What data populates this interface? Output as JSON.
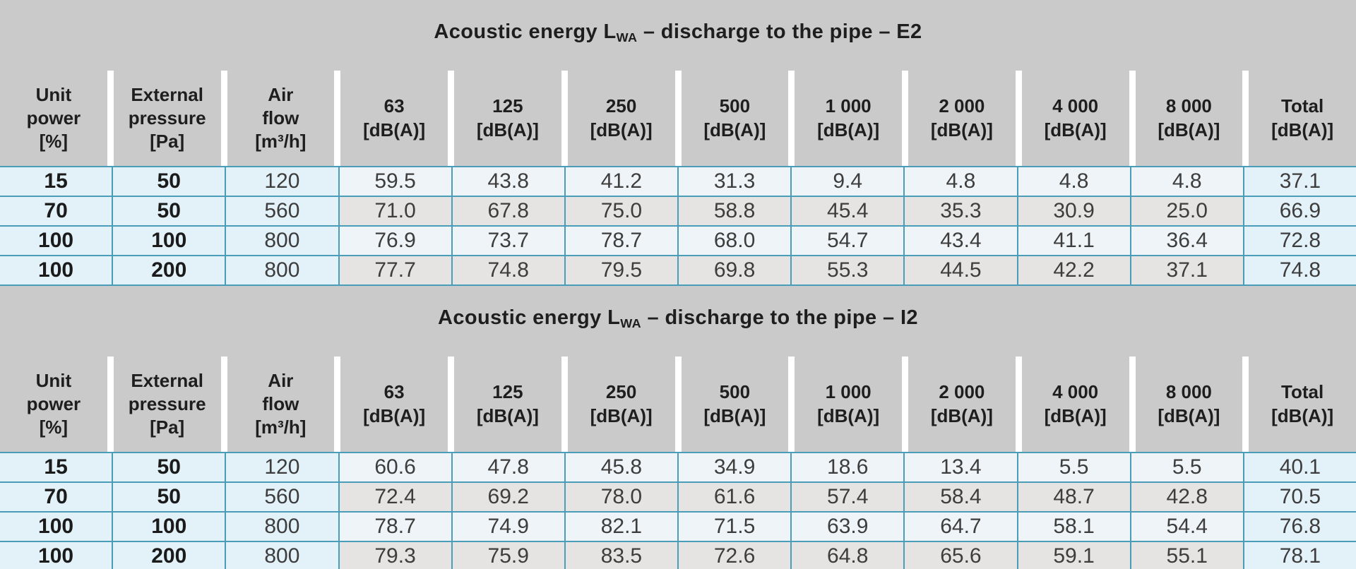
{
  "document": {
    "type": "acoustic-data-sheet",
    "colors": {
      "canvas_gray": "#cacaca",
      "header_gap_white": "#ffffff",
      "cell_blue": "#e3f1f9",
      "cell_light": "#eef4f7",
      "cell_gray": "#e5e4e2",
      "border_teal": "#4a9db9",
      "text_black": "#1e1e1e",
      "text_gray": "#3d3d3d"
    }
  },
  "columns": [
    "Unit\npower\n[%]",
    "External\npressure\n[Pa]",
    "Air\nflow\n[m³/h]",
    "63\n[dB(A)]",
    "125\n[dB(A)]",
    "250\n[dB(A)]",
    "500\n[dB(A)]",
    "1 000\n[dB(A)]",
    "2 000\n[dB(A)]",
    "4 000\n[dB(A)]",
    "8 000\n[dB(A)]",
    "Total\n[dB(A)]"
  ],
  "tables": [
    {
      "id": "E2",
      "title": {
        "prefix": "Acoustic energy L",
        "subscript": "WA",
        "suffix": " – discharge to the pipe – E2"
      },
      "rows": [
        [
          "15",
          "50",
          "120",
          "59.5",
          "43.8",
          "41.2",
          "31.3",
          "9.4",
          "4.8",
          "4.8",
          "4.8",
          "37.1"
        ],
        [
          "70",
          "50",
          "560",
          "71.0",
          "67.8",
          "75.0",
          "58.8",
          "45.4",
          "35.3",
          "30.9",
          "25.0",
          "66.9"
        ],
        [
          "100",
          "100",
          "800",
          "76.9",
          "73.7",
          "78.7",
          "68.0",
          "54.7",
          "43.4",
          "41.1",
          "36.4",
          "72.8"
        ],
        [
          "100",
          "200",
          "800",
          "77.7",
          "74.8",
          "79.5",
          "69.8",
          "55.3",
          "44.5",
          "42.2",
          "37.1",
          "74.8"
        ]
      ]
    },
    {
      "id": "I2",
      "title": {
        "prefix": "Acoustic energy L",
        "subscript": "WA",
        "suffix": " – discharge to the pipe – I2"
      },
      "rows": [
        [
          "15",
          "50",
          "120",
          "60.6",
          "47.8",
          "45.8",
          "34.9",
          "18.6",
          "13.4",
          "5.5",
          "5.5",
          "40.1"
        ],
        [
          "70",
          "50",
          "560",
          "72.4",
          "69.2",
          "78.0",
          "61.6",
          "57.4",
          "58.4",
          "48.7",
          "42.8",
          "70.5"
        ],
        [
          "100",
          "100",
          "800",
          "78.7",
          "74.9",
          "82.1",
          "71.5",
          "63.9",
          "64.7",
          "58.1",
          "54.4",
          "76.8"
        ],
        [
          "100",
          "200",
          "800",
          "79.3",
          "75.9",
          "83.5",
          "72.6",
          "64.8",
          "65.6",
          "59.1",
          "55.1",
          "78.1"
        ]
      ]
    }
  ]
}
